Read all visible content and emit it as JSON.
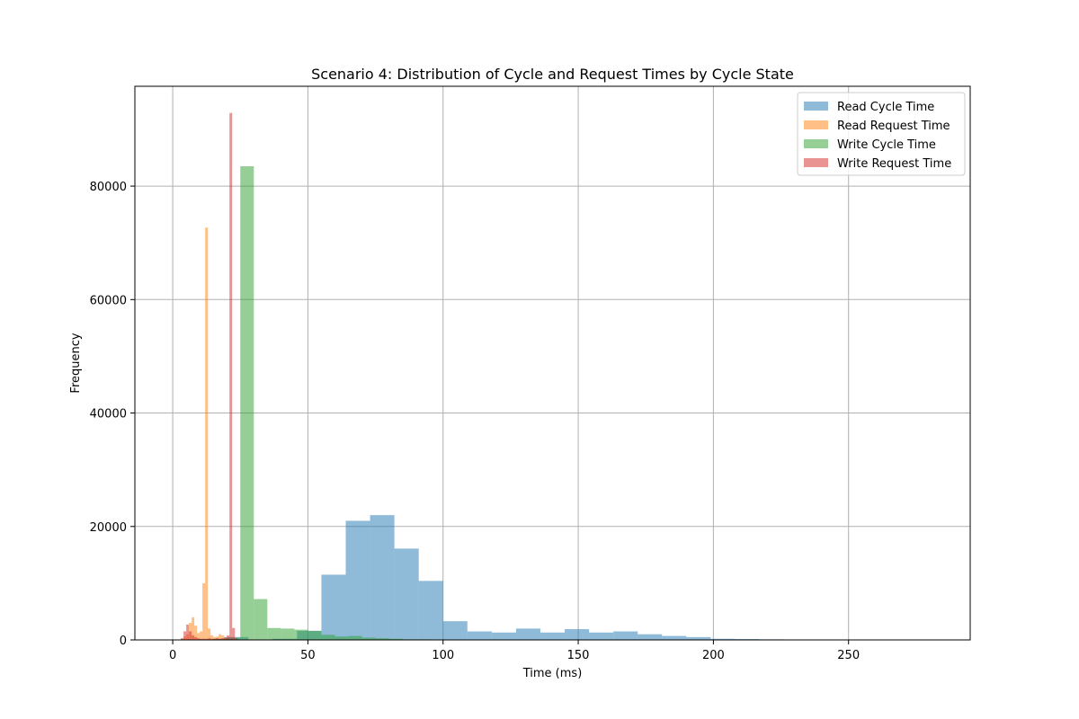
{
  "chart_data": {
    "type": "bar",
    "title": "Scenario 4: Distribution of Cycle and Request Times by Cycle State",
    "xlabel": "Time (ms)",
    "ylabel": "Frequency",
    "xlim": [
      -14,
      295
    ],
    "ylim": [
      0,
      97600
    ],
    "xticks": [
      0,
      50,
      100,
      150,
      200,
      250
    ],
    "yticks": [
      0,
      20000,
      40000,
      60000,
      80000
    ],
    "grid": true,
    "legend_position": "top-right",
    "bar_opacity": 0.5,
    "series": [
      {
        "name": "Read Cycle Time",
        "color": "#1f77b4",
        "bin_edges": [
          1,
          10,
          19,
          28,
          37,
          46,
          55,
          64,
          73,
          82,
          91,
          100,
          109,
          118,
          127,
          136,
          145,
          154,
          163,
          172,
          181,
          190,
          199,
          208,
          217,
          226,
          235,
          244,
          253,
          262,
          271,
          280
        ],
        "counts": [
          0,
          0,
          500,
          0,
          200,
          1600,
          11500,
          21000,
          22000,
          16100,
          10400,
          3300,
          1500,
          1300,
          2000,
          1300,
          1900,
          1300,
          1500,
          1000,
          700,
          500,
          200,
          150,
          100,
          50,
          30,
          20,
          10,
          10,
          10
        ]
      },
      {
        "name": "Read Request Time",
        "color": "#ff7f0e",
        "bin_edges": [
          3,
          4,
          5,
          6,
          7,
          8,
          9,
          10,
          11,
          12,
          13,
          14,
          15,
          16,
          17,
          18,
          19,
          20,
          21,
          22,
          23,
          24,
          25,
          26,
          27,
          28,
          29
        ],
        "counts": [
          200,
          600,
          1000,
          3000,
          4000,
          2500,
          1200,
          1500,
          10000,
          72700,
          2000,
          800,
          500,
          600,
          1000,
          800,
          300,
          200,
          100,
          100,
          50,
          50,
          30,
          20,
          10,
          10
        ]
      },
      {
        "name": "Write Cycle Time",
        "color": "#2ca02c",
        "bin_edges": [
          15,
          20,
          25,
          30,
          35,
          40,
          45,
          50,
          55,
          60,
          65,
          70,
          75,
          80,
          85,
          90,
          95,
          100
        ],
        "counts": [
          200,
          400,
          83500,
          7200,
          2100,
          2000,
          1800,
          1600,
          900,
          600,
          700,
          400,
          300,
          200,
          100,
          100,
          50
        ]
      },
      {
        "name": "Write Request Time",
        "color": "#d62728",
        "bin_edges": [
          3,
          4,
          5,
          6,
          7,
          8,
          9,
          10,
          11,
          12,
          13,
          14,
          15,
          16,
          17,
          18,
          19,
          20,
          21,
          22,
          23,
          24
        ],
        "counts": [
          300,
          1500,
          2700,
          1500,
          800,
          500,
          300,
          200,
          200,
          200,
          300,
          200,
          200,
          300,
          200,
          300,
          400,
          800,
          92900,
          2100,
          300
        ]
      }
    ]
  }
}
